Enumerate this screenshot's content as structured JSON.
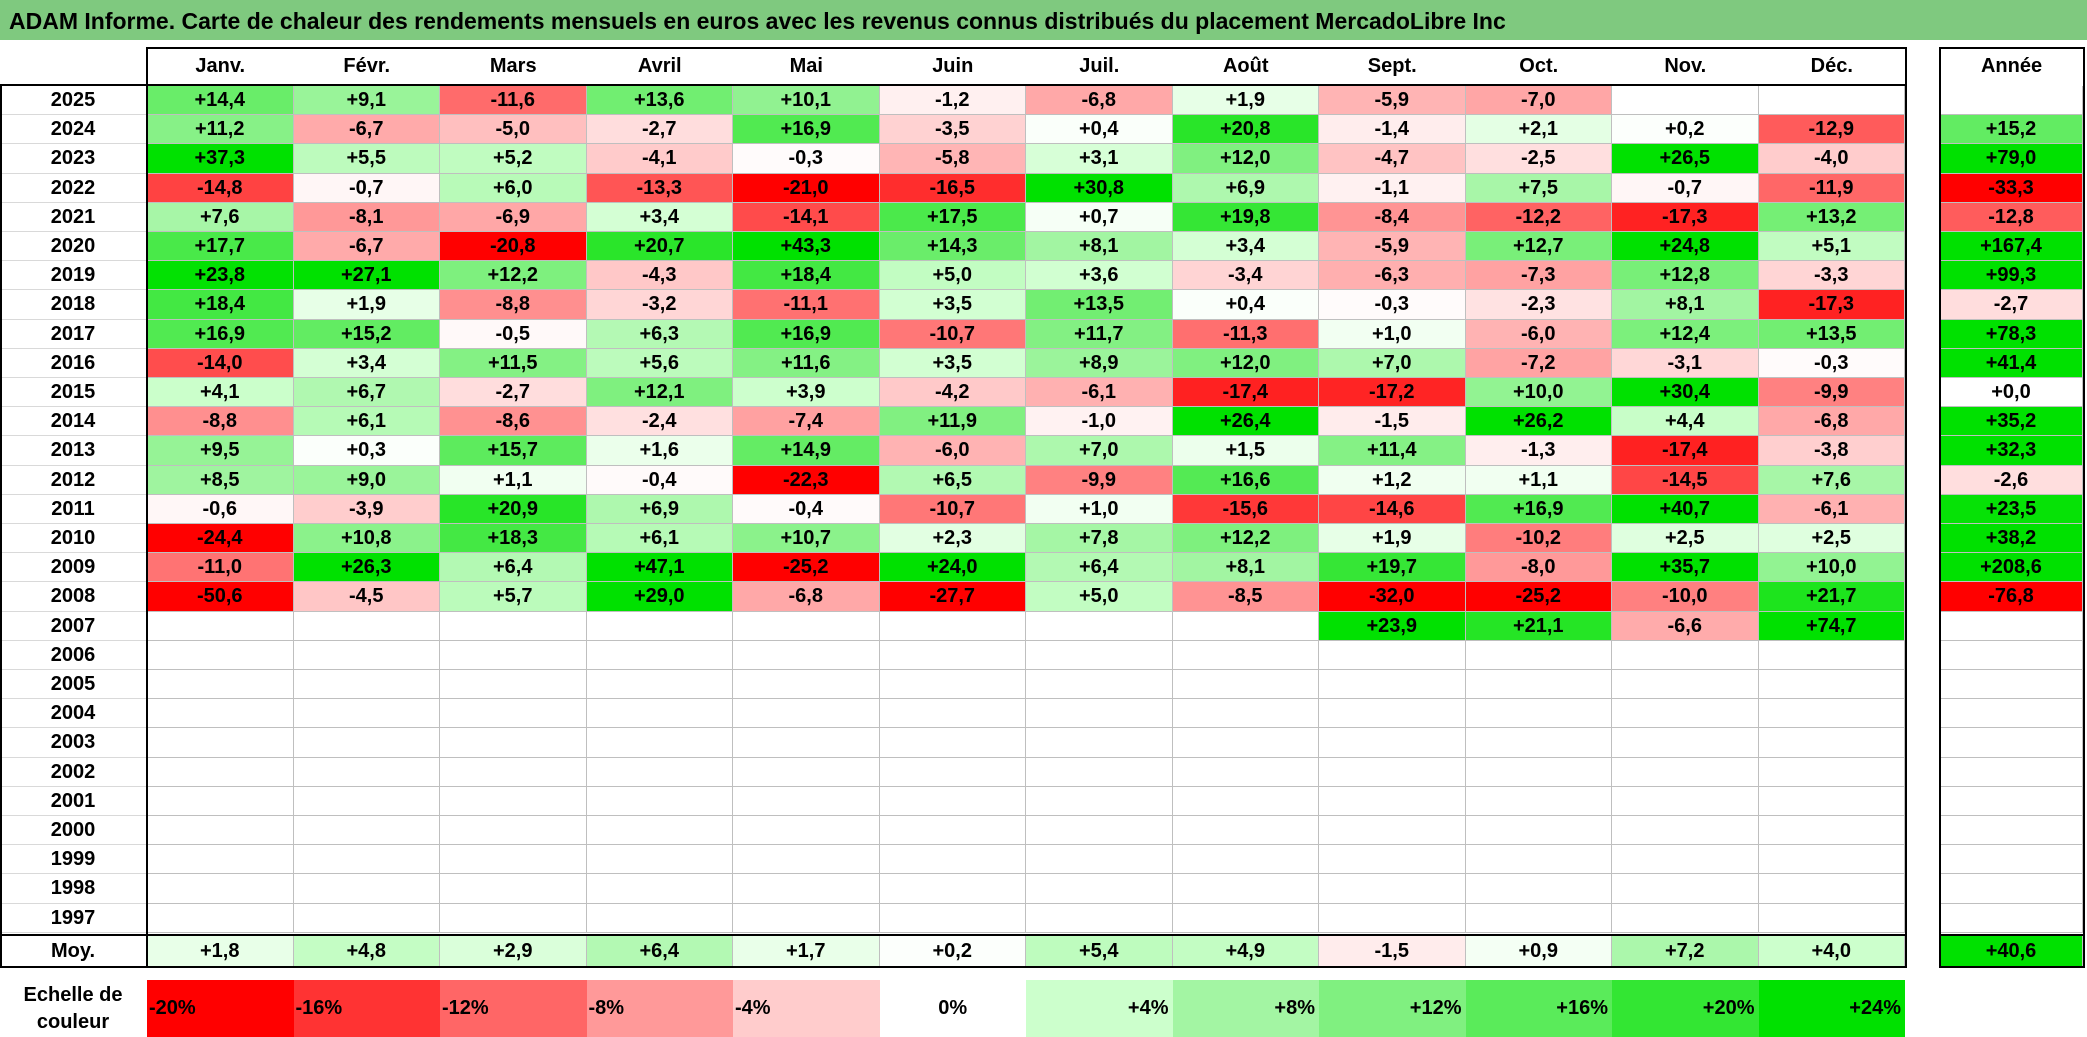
{
  "title": "ADAM Informe. Carte de chaleur des rendements mensuels en euros avec les revenus connus distribués du placement MercadoLibre Inc",
  "chart_data": {
    "type": "heatmap",
    "columns": [
      "Janv.",
      "Févr.",
      "Mars",
      "Avril",
      "Mai",
      "Juin",
      "Juil.",
      "Août",
      "Sept.",
      "Oct.",
      "Nov.",
      "Déc."
    ],
    "year_column_label": "Année",
    "rows": [
      {
        "year": "2025",
        "values": [
          "+14,4",
          "+9,1",
          "-11,6",
          "+13,6",
          "+10,1",
          "-1,2",
          "-6,8",
          "+1,9",
          "-5,9",
          "-7,0",
          "",
          ""
        ],
        "annual": ""
      },
      {
        "year": "2024",
        "values": [
          "+11,2",
          "-6,7",
          "-5,0",
          "-2,7",
          "+16,9",
          "-3,5",
          "+0,4",
          "+20,8",
          "-1,4",
          "+2,1",
          "+0,2",
          "-12,9"
        ],
        "annual": "+15,2"
      },
      {
        "year": "2023",
        "values": [
          "+37,3",
          "+5,5",
          "+5,2",
          "-4,1",
          "-0,3",
          "-5,8",
          "+3,1",
          "+12,0",
          "-4,7",
          "-2,5",
          "+26,5",
          "-4,0"
        ],
        "annual": "+79,0"
      },
      {
        "year": "2022",
        "values": [
          "-14,8",
          "-0,7",
          "+6,0",
          "-13,3",
          "-21,0",
          "-16,5",
          "+30,8",
          "+6,9",
          "-1,1",
          "+7,5",
          "-0,7",
          "-11,9"
        ],
        "annual": "-33,3"
      },
      {
        "year": "2021",
        "values": [
          "+7,6",
          "-8,1",
          "-6,9",
          "+3,4",
          "-14,1",
          "+17,5",
          "+0,7",
          "+19,8",
          "-8,4",
          "-12,2",
          "-17,3",
          "+13,2"
        ],
        "annual": "-12,8"
      },
      {
        "year": "2020",
        "values": [
          "+17,7",
          "-6,7",
          "-20,8",
          "+20,7",
          "+43,3",
          "+14,3",
          "+8,1",
          "+3,4",
          "-5,9",
          "+12,7",
          "+24,8",
          "+5,1"
        ],
        "annual": "+167,4"
      },
      {
        "year": "2019",
        "values": [
          "+23,8",
          "+27,1",
          "+12,2",
          "-4,3",
          "+18,4",
          "+5,0",
          "+3,6",
          "-3,4",
          "-6,3",
          "-7,3",
          "+12,8",
          "-3,3"
        ],
        "annual": "+99,3"
      },
      {
        "year": "2018",
        "values": [
          "+18,4",
          "+1,9",
          "-8,8",
          "-3,2",
          "-11,1",
          "+3,5",
          "+13,5",
          "+0,4",
          "-0,3",
          "-2,3",
          "+8,1",
          "-17,3"
        ],
        "annual": "-2,7"
      },
      {
        "year": "2017",
        "values": [
          "+16,9",
          "+15,2",
          "-0,5",
          "+6,3",
          "+16,9",
          "-10,7",
          "+11,7",
          "-11,3",
          "+1,0",
          "-6,0",
          "+12,4",
          "+13,5"
        ],
        "annual": "+78,3"
      },
      {
        "year": "2016",
        "values": [
          "-14,0",
          "+3,4",
          "+11,5",
          "+5,6",
          "+11,6",
          "+3,5",
          "+8,9",
          "+12,0",
          "+7,0",
          "-7,2",
          "-3,1",
          "-0,3"
        ],
        "annual": "+41,4"
      },
      {
        "year": "2015",
        "values": [
          "+4,1",
          "+6,7",
          "-2,7",
          "+12,1",
          "+3,9",
          "-4,2",
          "-6,1",
          "-17,4",
          "-17,2",
          "+10,0",
          "+30,4",
          "-9,9"
        ],
        "annual": "+0,0"
      },
      {
        "year": "2014",
        "values": [
          "-8,8",
          "+6,1",
          "-8,6",
          "-2,4",
          "-7,4",
          "+11,9",
          "-1,0",
          "+26,4",
          "-1,5",
          "+26,2",
          "+4,4",
          "-6,8"
        ],
        "annual": "+35,2"
      },
      {
        "year": "2013",
        "values": [
          "+9,5",
          "+0,3",
          "+15,7",
          "+1,6",
          "+14,9",
          "-6,0",
          "+7,0",
          "+1,5",
          "+11,4",
          "-1,3",
          "-17,4",
          "-3,8"
        ],
        "annual": "+32,3"
      },
      {
        "year": "2012",
        "values": [
          "+8,5",
          "+9,0",
          "+1,1",
          "-0,4",
          "-22,3",
          "+6,5",
          "-9,9",
          "+16,6",
          "+1,2",
          "+1,1",
          "-14,5",
          "+7,6"
        ],
        "annual": "-2,6"
      },
      {
        "year": "2011",
        "values": [
          "-0,6",
          "-3,9",
          "+20,9",
          "+6,9",
          "-0,4",
          "-10,7",
          "+1,0",
          "-15,6",
          "-14,6",
          "+16,9",
          "+40,7",
          "-6,1"
        ],
        "annual": "+23,5"
      },
      {
        "year": "2010",
        "values": [
          "-24,4",
          "+10,8",
          "+18,3",
          "+6,1",
          "+10,7",
          "+2,3",
          "+7,8",
          "+12,2",
          "+1,9",
          "-10,2",
          "+2,5",
          "+2,5"
        ],
        "annual": "+38,2"
      },
      {
        "year": "2009",
        "values": [
          "-11,0",
          "+26,3",
          "+6,4",
          "+47,1",
          "-25,2",
          "+24,0",
          "+6,4",
          "+8,1",
          "+19,7",
          "-8,0",
          "+35,7",
          "+10,0"
        ],
        "annual": "+208,6"
      },
      {
        "year": "2008",
        "values": [
          "-50,6",
          "-4,5",
          "+5,7",
          "+29,0",
          "-6,8",
          "-27,7",
          "+5,0",
          "-8,5",
          "-32,0",
          "-25,2",
          "-10,0",
          "+21,7"
        ],
        "annual": "-76,8"
      },
      {
        "year": "2007",
        "values": [
          "",
          "",
          "",
          "",
          "",
          "",
          "",
          "",
          "+23,9",
          "+21,1",
          "-6,6",
          "+74,7"
        ],
        "annual": ""
      },
      {
        "year": "2006",
        "values": [
          "",
          "",
          "",
          "",
          "",
          "",
          "",
          "",
          "",
          "",
          "",
          ""
        ],
        "annual": ""
      },
      {
        "year": "2005",
        "values": [
          "",
          "",
          "",
          "",
          "",
          "",
          "",
          "",
          "",
          "",
          "",
          ""
        ],
        "annual": ""
      },
      {
        "year": "2004",
        "values": [
          "",
          "",
          "",
          "",
          "",
          "",
          "",
          "",
          "",
          "",
          "",
          ""
        ],
        "annual": ""
      },
      {
        "year": "2003",
        "values": [
          "",
          "",
          "",
          "",
          "",
          "",
          "",
          "",
          "",
          "",
          "",
          ""
        ],
        "annual": ""
      },
      {
        "year": "2002",
        "values": [
          "",
          "",
          "",
          "",
          "",
          "",
          "",
          "",
          "",
          "",
          "",
          ""
        ],
        "annual": ""
      },
      {
        "year": "2001",
        "values": [
          "",
          "",
          "",
          "",
          "",
          "",
          "",
          "",
          "",
          "",
          "",
          ""
        ],
        "annual": ""
      },
      {
        "year": "2000",
        "values": [
          "",
          "",
          "",
          "",
          "",
          "",
          "",
          "",
          "",
          "",
          "",
          ""
        ],
        "annual": ""
      },
      {
        "year": "1999",
        "values": [
          "",
          "",
          "",
          "",
          "",
          "",
          "",
          "",
          "",
          "",
          "",
          ""
        ],
        "annual": ""
      },
      {
        "year": "1998",
        "values": [
          "",
          "",
          "",
          "",
          "",
          "",
          "",
          "",
          "",
          "",
          "",
          ""
        ],
        "annual": ""
      },
      {
        "year": "1997",
        "values": [
          "",
          "",
          "",
          "",
          "",
          "",
          "",
          "",
          "",
          "",
          "",
          ""
        ],
        "annual": ""
      }
    ],
    "average": {
      "label": "Moy.",
      "values": [
        "+1,8",
        "+4,8",
        "+2,9",
        "+6,4",
        "+1,7",
        "+0,2",
        "+5,4",
        "+4,9",
        "-1,5",
        "+0,9",
        "+7,2",
        "+4,0"
      ],
      "annual": "+40,6"
    },
    "color_scale": {
      "label": "Echelle de couleur",
      "steps": [
        {
          "label": "-20%",
          "value": -20,
          "color": "#ff0000"
        },
        {
          "label": "-16%",
          "value": -16,
          "color": "#ff3333"
        },
        {
          "label": "-12%",
          "value": -12,
          "color": "#ff6666"
        },
        {
          "label": "-8%",
          "value": -8,
          "color": "#ff9999"
        },
        {
          "label": "-4%",
          "value": -4,
          "color": "#ffcccc"
        },
        {
          "label": "0%",
          "value": 0,
          "color": "#ffffff"
        },
        {
          "label": "+4%",
          "value": 4,
          "color": "#ccffcc"
        },
        {
          "label": "+8%",
          "value": 8,
          "color": "#a3f5a3"
        },
        {
          "label": "+12%",
          "value": 12,
          "color": "#80f080"
        },
        {
          "label": "+16%",
          "value": 16,
          "color": "#5aeb5a"
        },
        {
          "label": "+20%",
          "value": 20,
          "color": "#33e633"
        },
        {
          "label": "+24%",
          "value": 24,
          "color": "#00e100"
        }
      ]
    }
  }
}
